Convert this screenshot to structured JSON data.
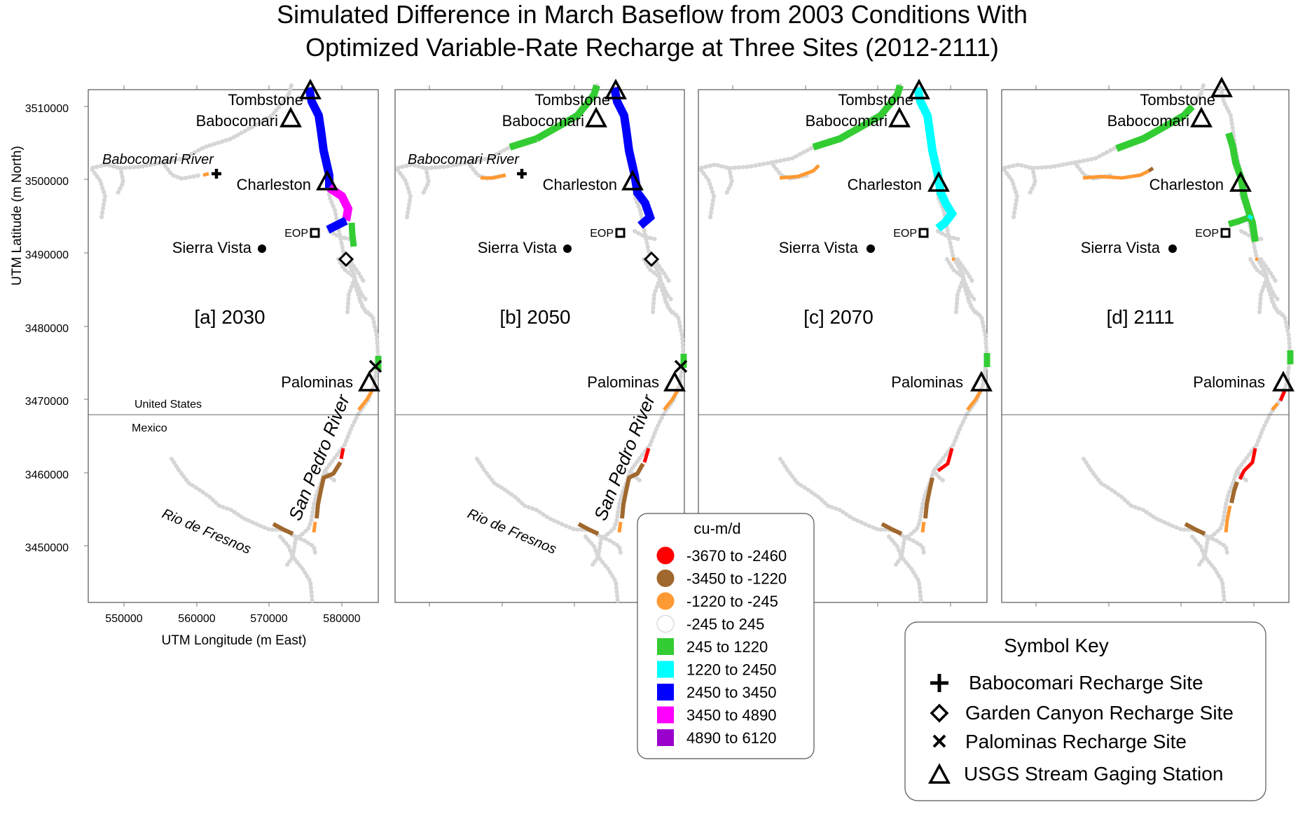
{
  "title": {
    "line1": "Simulated Difference in March Baseflow from 2003 Conditions With",
    "line2": "Optimized Variable-Rate Recharge at Three Sites (2012-2111)"
  },
  "axes": {
    "ylabel": "UTM Latitude (m North)",
    "xlabel": "UTM Longitude (m East)",
    "yticks": [
      "3510000",
      "3500000",
      "3490000",
      "3480000",
      "3470000",
      "3460000",
      "3450000"
    ],
    "xticks": [
      "550000",
      "560000",
      "570000",
      "580000"
    ]
  },
  "panels": [
    {
      "label": "[a] 2030"
    },
    {
      "label": "[b] 2050"
    },
    {
      "label": "[c] 2070"
    },
    {
      "label": "[d] 2111"
    }
  ],
  "places": {
    "tombstone": "Tombstone",
    "babocomari": "Babocomari",
    "charleston": "Charleston",
    "eop": "EOP",
    "sierra_vista": "Sierra Vista",
    "palominas": "Palominas",
    "babocomari_river": "Babocomari River",
    "san_pedro_river": "San Pedro River",
    "rio_de_fresnos": "Rio de Fresnos",
    "united_states": "United States",
    "mexico": "Mexico"
  },
  "legend": {
    "title": "cu-m/d",
    "items": [
      {
        "label": "-3670 to -2460",
        "color": "#ff0000",
        "shape": "circle"
      },
      {
        "label": "-3450 to -1220",
        "color": "#a0682e",
        "shape": "circle"
      },
      {
        "label": "-1220 to -245",
        "color": "#ff9933",
        "shape": "circle"
      },
      {
        "label": "-245 to 245",
        "color": "#ffffff",
        "shape": "circle"
      },
      {
        "label": "245 to 1220",
        "color": "#33cc33",
        "shape": "square"
      },
      {
        "label": "1220 to 2450",
        "color": "#00ffff",
        "shape": "square"
      },
      {
        "label": "2450 to 3450",
        "color": "#0000ff",
        "shape": "square"
      },
      {
        "label": "3450 to 4890",
        "color": "#ff00ff",
        "shape": "square"
      },
      {
        "label": "4890 to 6120",
        "color": "#9900cc",
        "shape": "square"
      }
    ]
  },
  "symbol_key": {
    "title": "Symbol Key",
    "items": [
      {
        "label": "Babocomari Recharge Site",
        "symbol": "plus-icon"
      },
      {
        "label": "Garden Canyon Recharge Site",
        "symbol": "diamond-icon"
      },
      {
        "label": "Palominas Recharge Site",
        "symbol": "x-icon"
      },
      {
        "label": "USGS Stream Gaging Station",
        "symbol": "triangle-icon"
      }
    ]
  },
  "colors": {
    "baseline": "#d6d6d6",
    "red": "#ff0000",
    "brown": "#a0682e",
    "orange": "#ff9933",
    "green": "#33cc33",
    "cyan": "#00ffff",
    "blue": "#0000ff",
    "magenta": "#ff00ff"
  }
}
